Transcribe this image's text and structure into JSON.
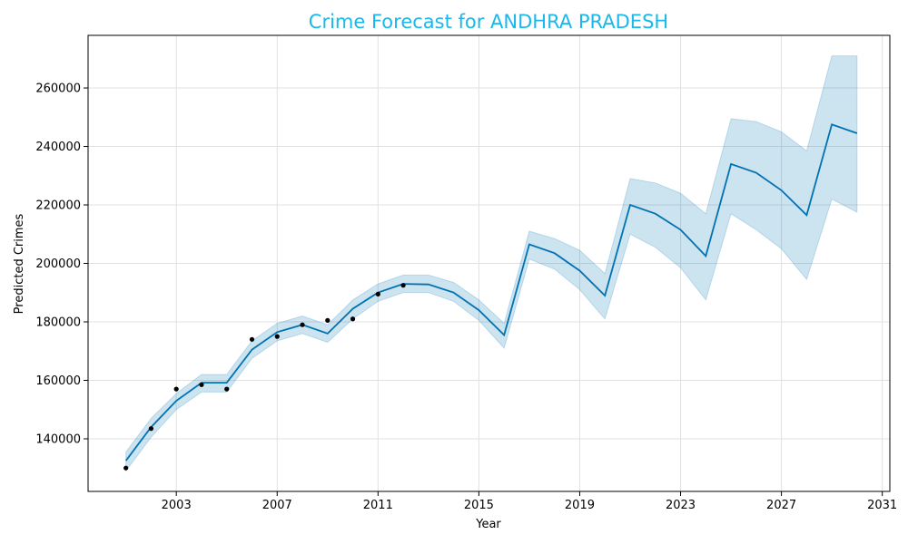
{
  "chart_data": {
    "type": "line",
    "title": "Crime Forecast for ANDHRA PRADESH",
    "xlabel": "Year",
    "ylabel": "Predicted Crimes",
    "xlim": [
      1999.5,
      2031.3
    ],
    "ylim": [
      122000,
      278000
    ],
    "x_ticks": [
      2003,
      2007,
      2011,
      2015,
      2019,
      2023,
      2027,
      2031
    ],
    "y_ticks": [
      140000,
      160000,
      180000,
      200000,
      220000,
      240000,
      260000
    ],
    "grid": true,
    "colors": {
      "title": "#1ab8ea",
      "forecast_line": "#0072b2",
      "interval_fill": "#0072b2",
      "observed": "#000000",
      "grid": "#e0e0e0"
    },
    "forecast": {
      "x": [
        2001,
        2002,
        2003,
        2004,
        2005,
        2006,
        2007,
        2008,
        2009,
        2010,
        2011,
        2012,
        2013,
        2014,
        2015,
        2016,
        2017,
        2018,
        2019,
        2020,
        2021,
        2022,
        2023,
        2024,
        2025,
        2026,
        2027,
        2028,
        2029,
        2030
      ],
      "yhat": [
        132500,
        144000,
        153000,
        159200,
        159200,
        170500,
        176500,
        179000,
        176000,
        184500,
        190000,
        193000,
        192800,
        190000,
        184000,
        175500,
        206500,
        203500,
        197500,
        189000,
        220000,
        217000,
        211500,
        202500,
        234000,
        231000,
        225000,
        216500,
        247500,
        244500
      ],
      "yhat_lower": [
        129000,
        140500,
        150000,
        156000,
        156000,
        167500,
        173500,
        176000,
        173000,
        181000,
        187000,
        190000,
        190000,
        187000,
        180500,
        171000,
        201500,
        198000,
        191000,
        181000,
        210000,
        205500,
        198500,
        187500,
        217000,
        211500,
        205000,
        194500,
        222000,
        217500
      ],
      "yhat_upper": [
        135500,
        147000,
        155500,
        162000,
        162000,
        173500,
        179500,
        182000,
        179000,
        187500,
        193000,
        196000,
        196000,
        193500,
        187500,
        179500,
        211000,
        208500,
        204500,
        196500,
        229000,
        227500,
        224000,
        217000,
        249500,
        248500,
        245000,
        238500,
        271000,
        271000
      ]
    },
    "observed": {
      "x": [
        2001,
        2002,
        2003,
        2004,
        2005,
        2006,
        2007,
        2008,
        2009,
        2010,
        2011,
        2012
      ],
      "y": [
        130000,
        143500,
        157000,
        158500,
        157000,
        174000,
        175000,
        179000,
        180500,
        181000,
        189500,
        192500
      ]
    }
  }
}
